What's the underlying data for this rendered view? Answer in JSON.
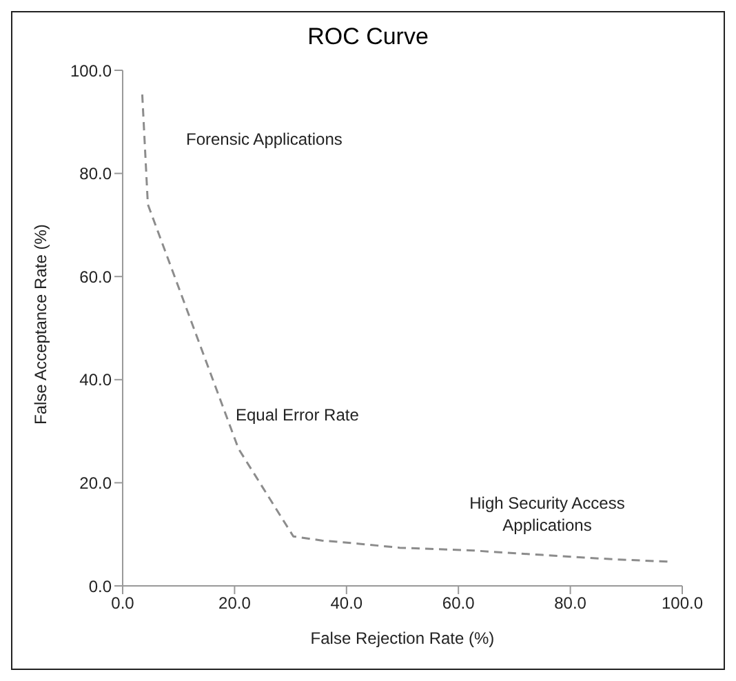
{
  "chart_data": {
    "type": "line",
    "title": "ROC Curve",
    "xlabel": "False Rejection Rate (%)",
    "ylabel": "False Acceptance Rate (%)",
    "x": [
      3.5,
      4.5,
      20.7,
      30.5,
      35.6,
      42,
      49.5,
      62,
      75,
      87,
      97.5
    ],
    "series": [
      {
        "color": "#8c8c8c",
        "values": [
          95.3,
          74,
          26.6,
          9.6,
          8.8,
          8.2,
          7.4,
          6.9,
          6,
          5.2,
          4.7
        ]
      }
    ],
    "xlim": [
      0,
      100
    ],
    "ylim": [
      0,
      100
    ],
    "xticks": [
      {
        "value": 0,
        "label": "0.0"
      },
      {
        "value": 20,
        "label": "20.0"
      },
      {
        "value": 40,
        "label": "40.0"
      },
      {
        "value": 60,
        "label": "60.0"
      },
      {
        "value": 80,
        "label": "80.0"
      },
      {
        "value": 100,
        "label": "100.0"
      }
    ],
    "yticks": [
      {
        "value": 0,
        "label": "0.0"
      },
      {
        "value": 20,
        "label": "20.0"
      },
      {
        "value": 40,
        "label": "40.0"
      },
      {
        "value": 60,
        "label": "60.0"
      },
      {
        "value": 80,
        "label": "80.0"
      },
      {
        "value": 100,
        "label": "100.0"
      }
    ],
    "annotations": [
      "Forensic Applications",
      "Equal Error Rate",
      "High Security Access Applications"
    ],
    "grid": false,
    "legend": false,
    "marker": "none",
    "line_style": "dashed"
  }
}
